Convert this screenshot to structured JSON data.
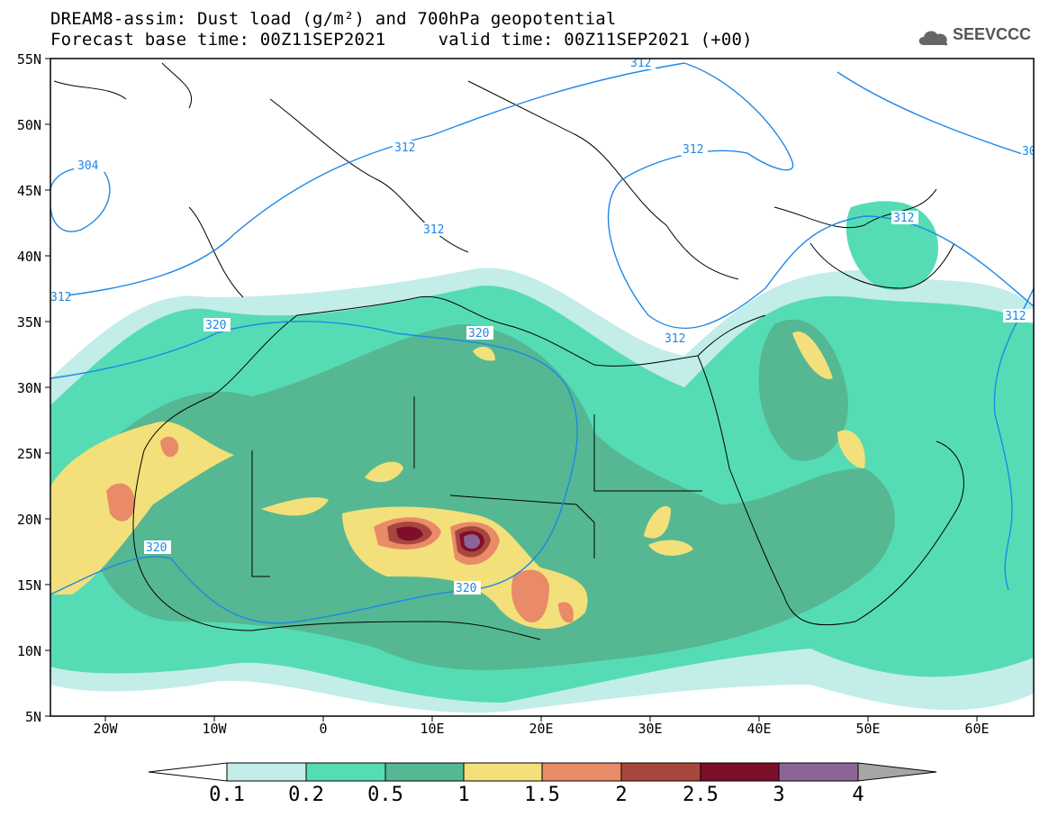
{
  "title": {
    "line1": "DREAM8-assim: Dust load (g/m²) and 700hPa geopotential",
    "line2": "Forecast base time: 00Z11SEP2021     valid time: 00Z11SEP2021 (+00)"
  },
  "logo": {
    "text": "SEEVCCC",
    "icon": "cloud-icon"
  },
  "axes": {
    "lon_range": [
      -25,
      65
    ],
    "lat_range": [
      5,
      55
    ],
    "y_ticks": [
      "55N",
      "50N",
      "45N",
      "40N",
      "35N",
      "30N",
      "25N",
      "20N",
      "15N",
      "10N",
      "5N"
    ],
    "x_ticks": [
      "20W",
      "10W",
      "0",
      "10E",
      "20E",
      "30E",
      "40E",
      "50E",
      "60E"
    ]
  },
  "colorbar": {
    "labels": [
      "0.1",
      "0.2",
      "0.5",
      "1",
      "1.5",
      "2",
      "2.5",
      "3",
      "4"
    ],
    "colors": [
      "#c2ede8",
      "#56dcb4",
      "#55b893",
      "#f3e07a",
      "#e98a68",
      "#a7473c",
      "#7d0f2b",
      "#8b6596",
      "#a6a6a6"
    ]
  },
  "contour_labels": [
    "304",
    "312",
    "312",
    "312",
    "312",
    "312",
    "312",
    "312",
    "312",
    "320",
    "320",
    "320",
    "320",
    "30"
  ],
  "colors": {
    "contour": "#1e88e5",
    "coast": "#000000"
  }
}
